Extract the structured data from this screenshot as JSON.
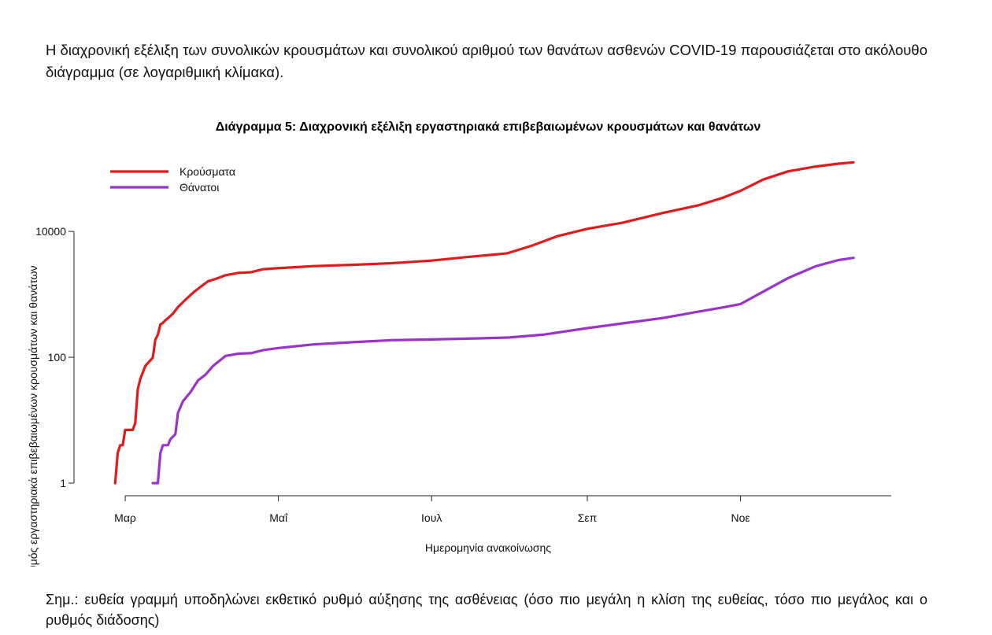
{
  "intro_text": "Η διαχρονική εξέλιξη των συνολικών κρουσμάτων και συνολικού αριθμού των θανάτων ασθενών COVID-19 παρουσιάζεται στο ακόλουθο διάγραμμα (σε λογαριθμική κλίμακα).",
  "note_text": "Σημ.: ευθεία γραμμή υποδηλώνει εκθετικό ρυθμό αύξησης της ασθένειας (όσο πιο μεγάλη η κλίση της ευθείας, τόσο πιο μεγάλος και ο ρυθμός διάδοσης)",
  "chart_data": {
    "type": "line",
    "title": "Διάγραμμα 5: Διαχρονική εξέλιξη εργαστηριακά επιβεβαιωμένων κρουσμάτων και θανάτων",
    "xlabel": "Ημερομηνία ανακοίνωσης",
    "ylabel": "Αριθμός εργαστηριακά επιβεβαιωμένων κρουσμάτων και θανάτων",
    "y_scale": "log",
    "yticks": [
      1,
      100,
      10000
    ],
    "ytick_labels": [
      "1",
      "100",
      "10000"
    ],
    "ylim": [
      1,
      150000
    ],
    "xticks": [
      "2020-03-01",
      "2020-05-01",
      "2020-07-01",
      "2020-09-01",
      "2020-11-01"
    ],
    "xtick_labels": [
      "Μαρ",
      "Μαΐ",
      "Ιουλ",
      "Σεπ",
      "Νοε"
    ],
    "xlim": [
      "2020-02-14",
      "2020-12-31"
    ],
    "grid": false,
    "legend_position": "top-left",
    "series": [
      {
        "name": "Κρούσματα",
        "color": "#e31a1c",
        "points": [
          [
            "2020-02-26",
            1
          ],
          [
            "2020-02-27",
            3
          ],
          [
            "2020-02-28",
            4
          ],
          [
            "2020-02-29",
            4
          ],
          [
            "2020-03-01",
            7
          ],
          [
            "2020-03-04",
            7
          ],
          [
            "2020-03-05",
            9
          ],
          [
            "2020-03-06",
            31
          ],
          [
            "2020-03-07",
            45
          ],
          [
            "2020-03-09",
            73
          ],
          [
            "2020-03-11",
            89
          ],
          [
            "2020-03-12",
            99
          ],
          [
            "2020-03-13",
            190
          ],
          [
            "2020-03-14",
            228
          ],
          [
            "2020-03-15",
            331
          ],
          [
            "2020-03-16",
            352
          ],
          [
            "2020-03-17",
            387
          ],
          [
            "2020-03-18",
            418
          ],
          [
            "2020-03-20",
            495
          ],
          [
            "2020-03-22",
            624
          ],
          [
            "2020-03-25",
            821
          ],
          [
            "2020-03-28",
            1061
          ],
          [
            "2020-03-31",
            1314
          ],
          [
            "2020-04-03",
            1613
          ],
          [
            "2020-04-06",
            1755
          ],
          [
            "2020-04-10",
            2011
          ],
          [
            "2020-04-15",
            2192
          ],
          [
            "2020-04-20",
            2245
          ],
          [
            "2020-04-25",
            2506
          ],
          [
            "2020-04-30",
            2591
          ],
          [
            "2020-05-15",
            2810
          ],
          [
            "2020-06-01",
            2952
          ],
          [
            "2020-06-15",
            3121
          ],
          [
            "2020-07-01",
            3432
          ],
          [
            "2020-07-15",
            3910
          ],
          [
            "2020-07-31",
            4477
          ],
          [
            "2020-08-10",
            5942
          ],
          [
            "2020-08-20",
            8381
          ],
          [
            "2020-09-01",
            10998
          ],
          [
            "2020-09-15",
            13730
          ],
          [
            "2020-10-01",
            19613
          ],
          [
            "2020-10-15",
            25802
          ],
          [
            "2020-10-25",
            34299
          ],
          [
            "2020-11-01",
            44138
          ],
          [
            "2020-11-10",
            66637
          ],
          [
            "2020-11-20",
            90121
          ],
          [
            "2020-12-01",
            107470
          ],
          [
            "2020-12-10",
            119000
          ],
          [
            "2020-12-16",
            125000
          ]
        ]
      },
      {
        "name": "Θάνατοι",
        "color": "#9933cc",
        "points": [
          [
            "2020-03-12",
            1
          ],
          [
            "2020-03-14",
            1
          ],
          [
            "2020-03-15",
            3
          ],
          [
            "2020-03-16",
            4
          ],
          [
            "2020-03-18",
            4
          ],
          [
            "2020-03-19",
            5
          ],
          [
            "2020-03-21",
            6
          ],
          [
            "2020-03-22",
            13
          ],
          [
            "2020-03-24",
            20
          ],
          [
            "2020-03-27",
            28
          ],
          [
            "2020-03-30",
            43
          ],
          [
            "2020-04-02",
            53
          ],
          [
            "2020-04-05",
            73
          ],
          [
            "2020-04-10",
            105
          ],
          [
            "2020-04-15",
            114
          ],
          [
            "2020-04-20",
            116
          ],
          [
            "2020-04-25",
            130
          ],
          [
            "2020-05-01",
            140
          ],
          [
            "2020-05-15",
            160
          ],
          [
            "2020-06-01",
            175
          ],
          [
            "2020-06-15",
            187
          ],
          [
            "2020-07-01",
            192
          ],
          [
            "2020-07-20",
            200
          ],
          [
            "2020-08-01",
            206
          ],
          [
            "2020-08-15",
            230
          ],
          [
            "2020-09-01",
            290
          ],
          [
            "2020-09-15",
            345
          ],
          [
            "2020-10-01",
            420
          ],
          [
            "2020-10-15",
            529
          ],
          [
            "2020-10-25",
            620
          ],
          [
            "2020-11-01",
            700
          ],
          [
            "2020-11-10",
            1100
          ],
          [
            "2020-11-20",
            1815
          ],
          [
            "2020-12-01",
            2800
          ],
          [
            "2020-12-10",
            3500
          ],
          [
            "2020-12-16",
            3800
          ]
        ]
      }
    ]
  }
}
